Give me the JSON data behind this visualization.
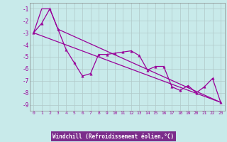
{
  "xlabel": "Windchill (Refroidissement éolien,°C)",
  "bg_color": "#c8eaea",
  "xlabel_bg": "#7b2d8b",
  "line_color": "#990099",
  "grid_color": "#b0c8c8",
  "xlim": [
    -0.5,
    23.5
  ],
  "ylim": [
    -9.5,
    -0.5
  ],
  "yticks": [
    -1,
    -2,
    -3,
    -4,
    -5,
    -6,
    -7,
    -8,
    -9
  ],
  "xticks": [
    0,
    1,
    2,
    3,
    4,
    5,
    6,
    7,
    8,
    9,
    10,
    11,
    12,
    13,
    14,
    15,
    16,
    17,
    18,
    19,
    20,
    21,
    22,
    23
  ],
  "line1_x": [
    0,
    1,
    2,
    3,
    4,
    5,
    6,
    7,
    8,
    9,
    10,
    11,
    12,
    13,
    14,
    15,
    16,
    17,
    18,
    19,
    20,
    21,
    22,
    23
  ],
  "line1_y": [
    -3.0,
    -2.2,
    -1.0,
    -2.7,
    -4.4,
    -5.5,
    -6.6,
    -6.4,
    -4.8,
    -4.8,
    -4.7,
    -4.6,
    -4.5,
    -4.9,
    -6.1,
    -5.8,
    -5.8,
    -7.5,
    -7.8,
    -7.4,
    -8.0,
    -7.5,
    -6.8,
    -8.8
  ],
  "line2_x": [
    0,
    1,
    2,
    3,
    23
  ],
  "line2_y": [
    -3.0,
    -1.0,
    -1.0,
    -2.7,
    -8.8
  ],
  "line3_x": [
    0,
    23
  ],
  "line3_y": [
    -3.0,
    -8.8
  ]
}
